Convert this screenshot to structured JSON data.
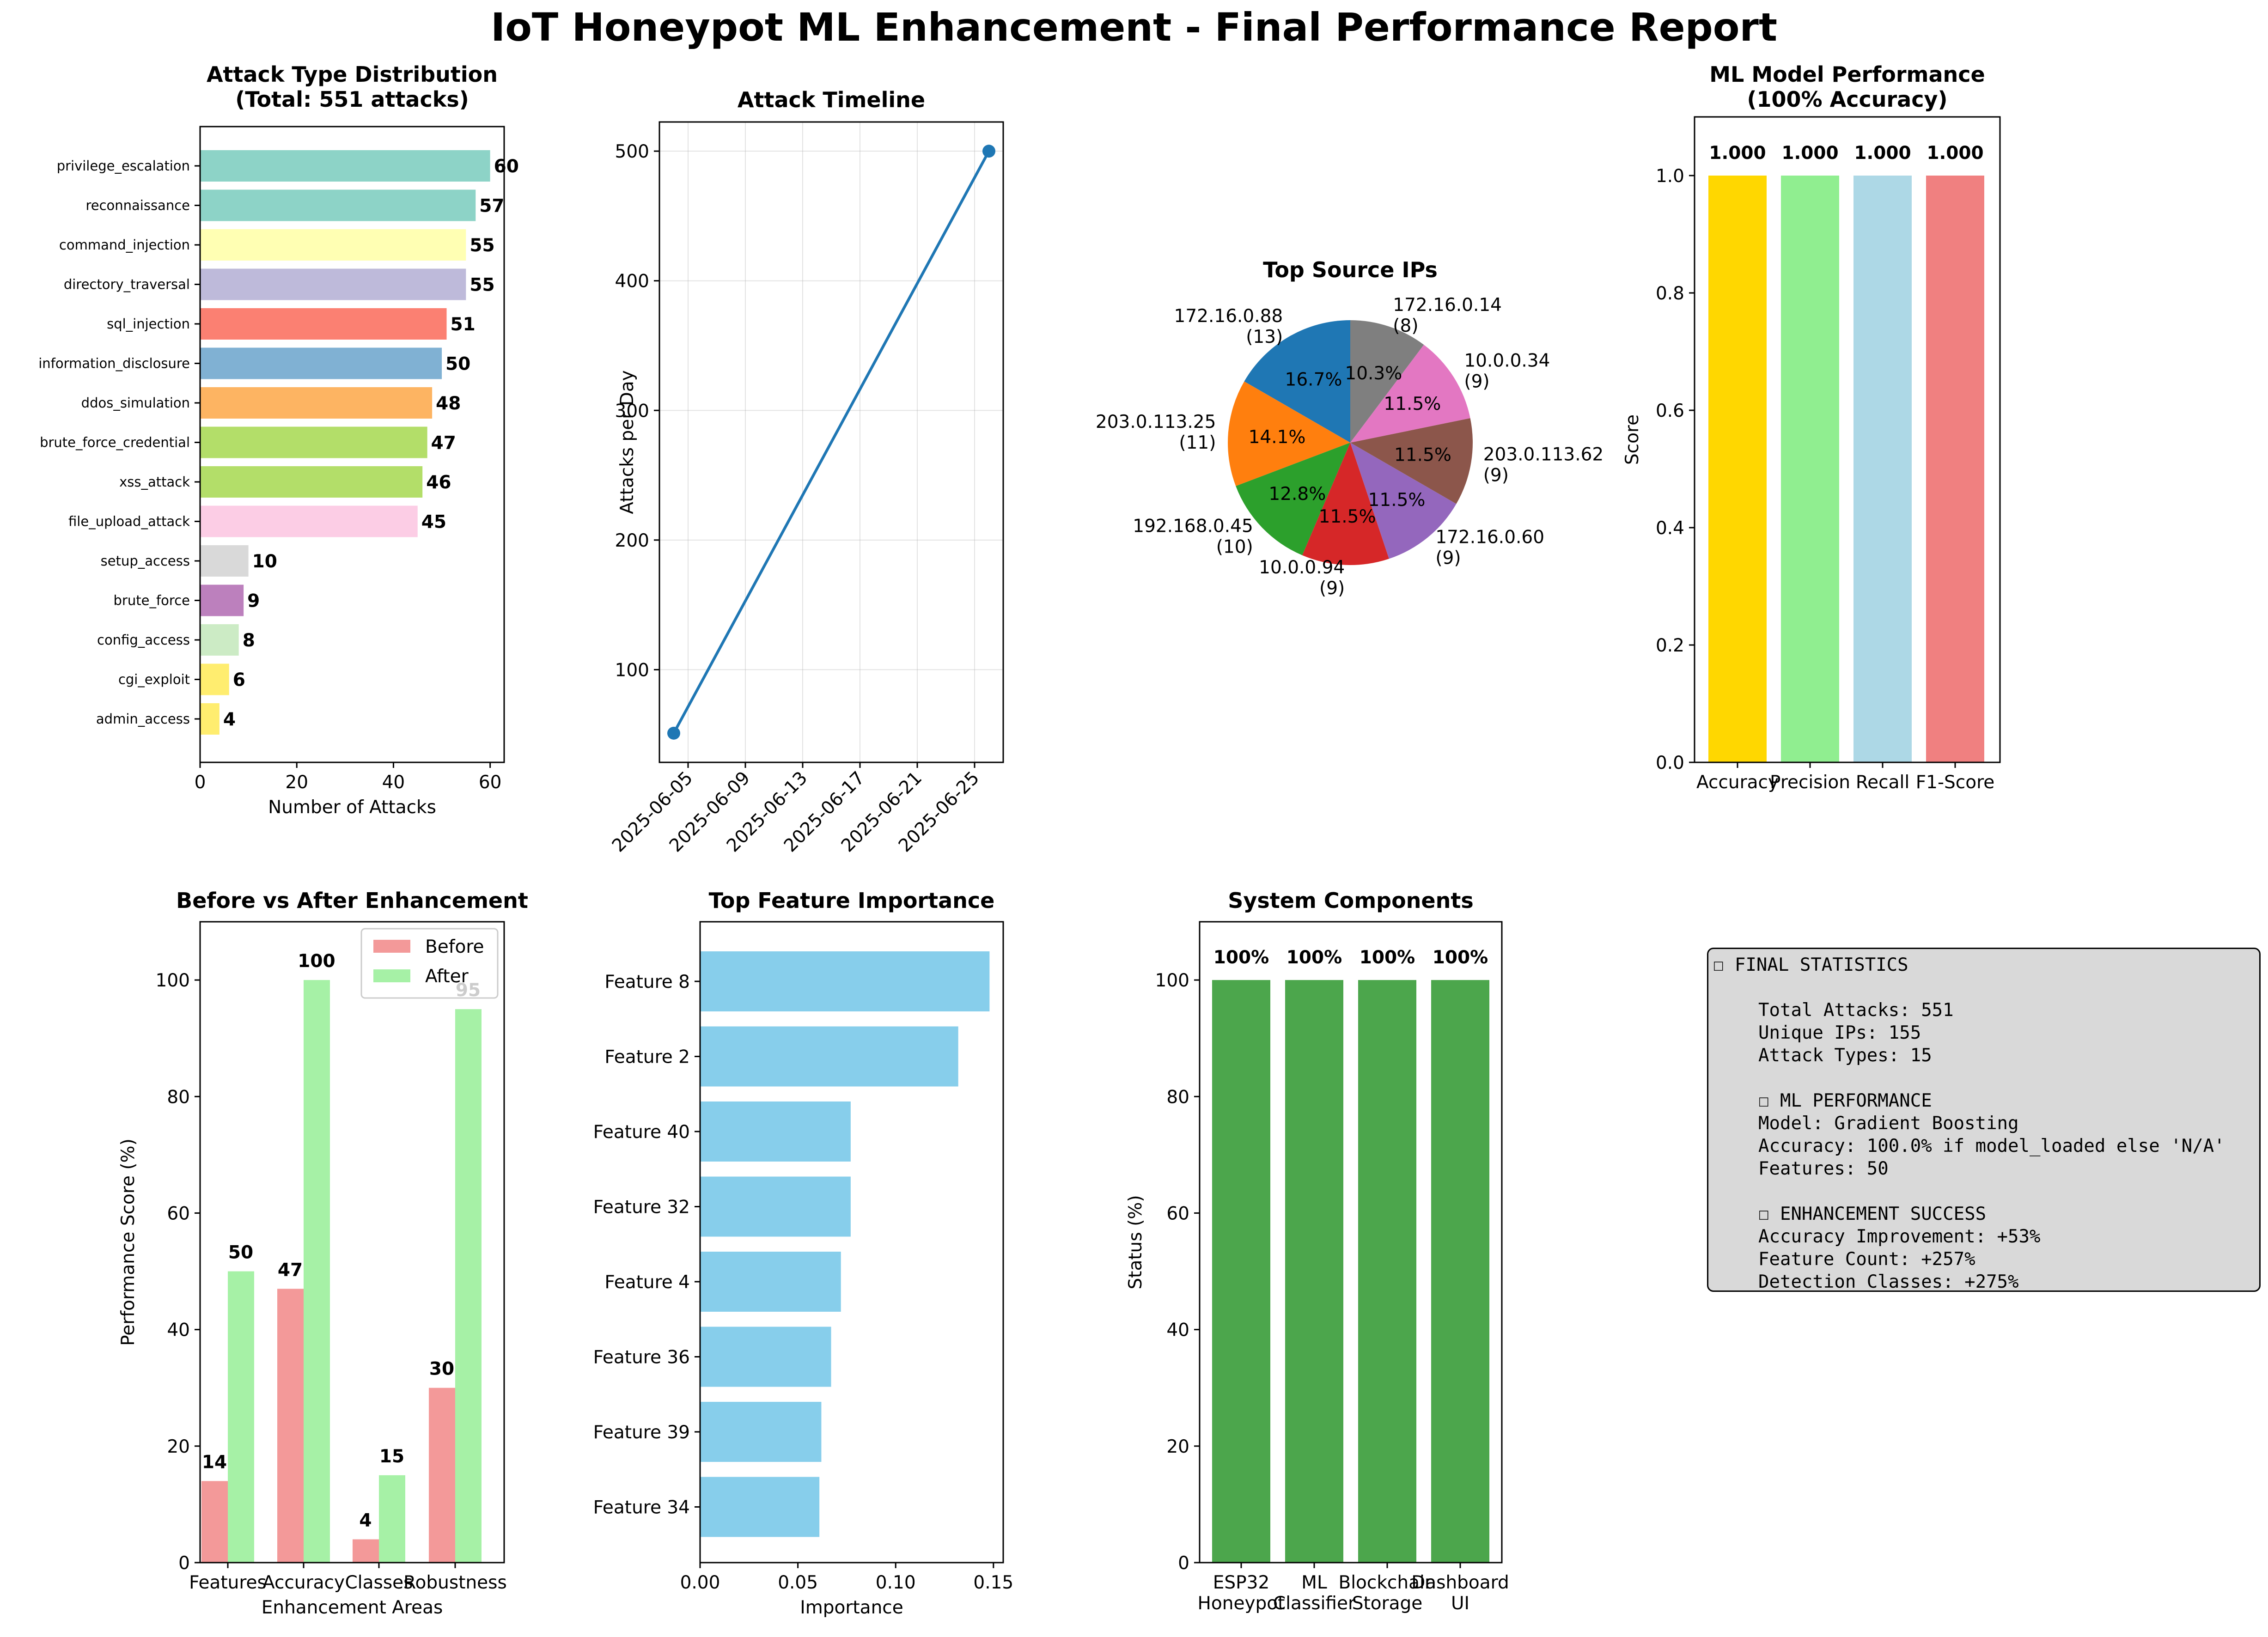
{
  "page_title": "IoT Honeypot ML Enhancement - Final Performance Report",
  "chart_data": [
    {
      "id": "attack_type",
      "type": "bar",
      "orientation": "horizontal",
      "title": "Attack Type Distribution\n(Total: 551 attacks)",
      "xlabel": "Number of Attacks",
      "ylabel": "",
      "xlim": [
        0,
        62.9
      ],
      "xticks": [
        "0",
        "20",
        "40",
        "60"
      ],
      "categories": [
        "privilege_escalation",
        "reconnaissance",
        "command_injection",
        "directory_traversal",
        "sql_injection",
        "information_disclosure",
        "ddos_simulation",
        "brute_force_credential",
        "xss_attack",
        "file_upload_attack",
        "setup_access",
        "brute_force",
        "config_access",
        "cgi_exploit",
        "admin_access"
      ],
      "values": [
        60,
        57,
        55,
        55,
        51,
        50,
        48,
        47,
        46,
        45,
        10,
        9,
        8,
        6,
        4
      ],
      "colors": [
        "#8dd3c7",
        "#8dd3c7",
        "#ffffb3",
        "#bebada",
        "#fb8072",
        "#80b1d3",
        "#fdb462",
        "#b3de69",
        "#b3de69",
        "#fccde5",
        "#d9d9d9",
        "#bc80bd",
        "#ccebc5",
        "#ffed6f",
        "#ffed6f"
      ],
      "data_labels": [
        "60",
        "57",
        "55",
        "55",
        "51",
        "50",
        "48",
        "47",
        "46",
        "45",
        "10",
        "9",
        "8",
        "6",
        "4"
      ]
    },
    {
      "id": "timeline",
      "type": "line",
      "title": "Attack Timeline",
      "xlabel": "",
      "ylabel": "Attacks per Day",
      "x": [
        "2025-06-04",
        "2025-06-26"
      ],
      "y": [
        51,
        500
      ],
      "ylim": [
        28.5,
        522.5
      ],
      "xlim": [
        "2025-06-03",
        "2025-06-27"
      ],
      "xticks": [
        "2025-06-05",
        "2025-06-09",
        "2025-06-13",
        "2025-06-17",
        "2025-06-21",
        "2025-06-25"
      ],
      "yticks": [
        "100",
        "200",
        "300",
        "400",
        "500"
      ],
      "grid": true,
      "color": "#1f77b4"
    },
    {
      "id": "source_ips",
      "type": "pie",
      "title": "Top Source IPs",
      "labels": [
        "172.16.0.88\n(13)",
        "203.0.113.25\n(11)",
        "192.168.0.45\n(10)",
        "10.0.0.94\n(9)",
        "172.16.0.60\n(9)",
        "203.0.113.62\n(9)",
        "10.0.0.34\n(9)",
        "172.16.0.14\n(8)"
      ],
      "values": [
        13,
        11,
        10,
        9,
        9,
        9,
        9,
        8
      ],
      "pct_labels": [
        "16.7%",
        "14.1%",
        "12.8%",
        "11.5%",
        "11.5%",
        "11.5%",
        "11.5%",
        "10.3%"
      ],
      "colors": [
        "#1f77b4",
        "#ff7f0e",
        "#2ca02c",
        "#d62728",
        "#9467bd",
        "#8c564b",
        "#e377c2",
        "#7f7f7f"
      ],
      "start_angle_deg": 90,
      "direction": "counterclockwise"
    },
    {
      "id": "ml_perf",
      "type": "bar",
      "title": "ML Model Performance\n(100% Accuracy)",
      "xlabel": "",
      "ylabel": "Score",
      "categories": [
        "Accuracy",
        "Precision",
        "Recall",
        "F1-Score"
      ],
      "values": [
        1.0,
        1.0,
        1.0,
        1.0
      ],
      "data_labels": [
        "1.000",
        "1.000",
        "1.000",
        "1.000"
      ],
      "colors": [
        "#ffd700",
        "#90ee90",
        "#add8e6",
        "#f08080"
      ],
      "ylim": [
        0,
        1.1
      ],
      "yticks": [
        "0.0",
        "0.2",
        "0.4",
        "0.6",
        "0.8",
        "1.0"
      ]
    },
    {
      "id": "before_after",
      "type": "bar",
      "title": "Before vs After Enhancement",
      "xlabel": "Enhancement Areas",
      "ylabel": "Performance Score (%)",
      "categories": [
        "Features",
        "Accuracy",
        "Classes",
        "Robustness"
      ],
      "series": [
        {
          "name": "Before",
          "values": [
            14,
            47,
            4,
            30
          ],
          "color": "#f08080",
          "data_labels": [
            "14",
            "47",
            "4",
            "30"
          ]
        },
        {
          "name": "After",
          "values": [
            50,
            100,
            15,
            95
          ],
          "color": "#90ee90",
          "data_labels": [
            "50",
            "100",
            "15",
            "95"
          ]
        }
      ],
      "ylim": [
        0,
        110
      ],
      "yticks": [
        "0",
        "20",
        "40",
        "60",
        "80",
        "100"
      ],
      "legend": "top-right"
    },
    {
      "id": "feature_importance",
      "type": "bar",
      "orientation": "horizontal",
      "title": "Top Feature Importance",
      "xlabel": "Importance",
      "ylabel": "",
      "categories": [
        "Feature 8",
        "Feature 2",
        "Feature 40",
        "Feature 32",
        "Feature 4",
        "Feature 36",
        "Feature 39",
        "Feature 34"
      ],
      "values": [
        0.148,
        0.132,
        0.077,
        0.077,
        0.072,
        0.067,
        0.062,
        0.061
      ],
      "color": "#87ceeb",
      "xlim": [
        0,
        0.155
      ],
      "xticks": [
        "0.00",
        "0.05",
        "0.10",
        "0.15"
      ]
    },
    {
      "id": "components",
      "type": "bar",
      "title": "System Components",
      "xlabel": "",
      "ylabel": "Status (%)",
      "categories": [
        "ESP32\nHoneypot",
        "ML\nClassifier",
        "Blockchain\nStorage",
        "Dashboard\nUI"
      ],
      "values": [
        100,
        100,
        100,
        100
      ],
      "data_labels": [
        "100%",
        "100%",
        "100%",
        "100%"
      ],
      "color": "#4ca64c",
      "ylim": [
        0,
        110
      ],
      "yticks": [
        "0",
        "20",
        "40",
        "60",
        "80",
        "100"
      ]
    }
  ],
  "final_stats": {
    "lines": [
      {
        "text": "☐ FINAL STATISTICS",
        "style": "hdr"
      },
      {
        "text": "",
        "style": "ind"
      },
      {
        "text": "Total Attacks: 551",
        "style": "ind"
      },
      {
        "text": "Unique IPs: 155",
        "style": "ind"
      },
      {
        "text": "Attack Types: 15",
        "style": "ind"
      },
      {
        "text": "",
        "style": "ind"
      },
      {
        "text": "☐ ML PERFORMANCE",
        "style": "ind"
      },
      {
        "text": "Model: Gradient Boosting",
        "style": "ind"
      },
      {
        "text": "Accuracy: 100.0% if model_loaded else 'N/A'",
        "style": "ind"
      },
      {
        "text": "Features: 50",
        "style": "ind"
      },
      {
        "text": "",
        "style": "ind"
      },
      {
        "text": "☐ ENHANCEMENT SUCCESS",
        "style": "ind"
      },
      {
        "text": "Accuracy Improvement: +53%",
        "style": "ind"
      },
      {
        "text": "Feature Count: +257%",
        "style": "ind"
      },
      {
        "text": "Detection Classes: +275%",
        "style": "ind"
      }
    ]
  }
}
